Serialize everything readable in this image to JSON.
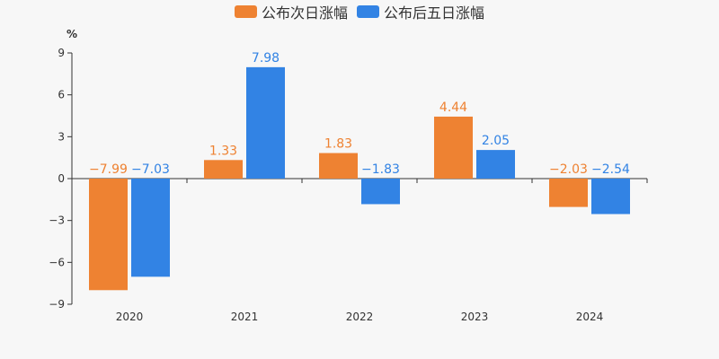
{
  "chart_data": {
    "type": "bar",
    "categories": [
      "2020",
      "2021",
      "2022",
      "2023",
      "2024"
    ],
    "series": [
      {
        "name": "公布次日涨幅",
        "values": [
          -7.99,
          1.33,
          1.83,
          4.44,
          -2.03
        ],
        "color": "#ee8232"
      },
      {
        "name": "公布后五日涨幅",
        "values": [
          -7.03,
          7.98,
          -1.83,
          2.05,
          -2.54
        ],
        "color": "#3283e4"
      }
    ],
    "ylabel": "%",
    "ylim": [
      -9,
      9
    ],
    "yticks": [
      9,
      6,
      3,
      0,
      -3,
      -6,
      -9
    ],
    "grid": false,
    "legend_position": "top-center"
  }
}
